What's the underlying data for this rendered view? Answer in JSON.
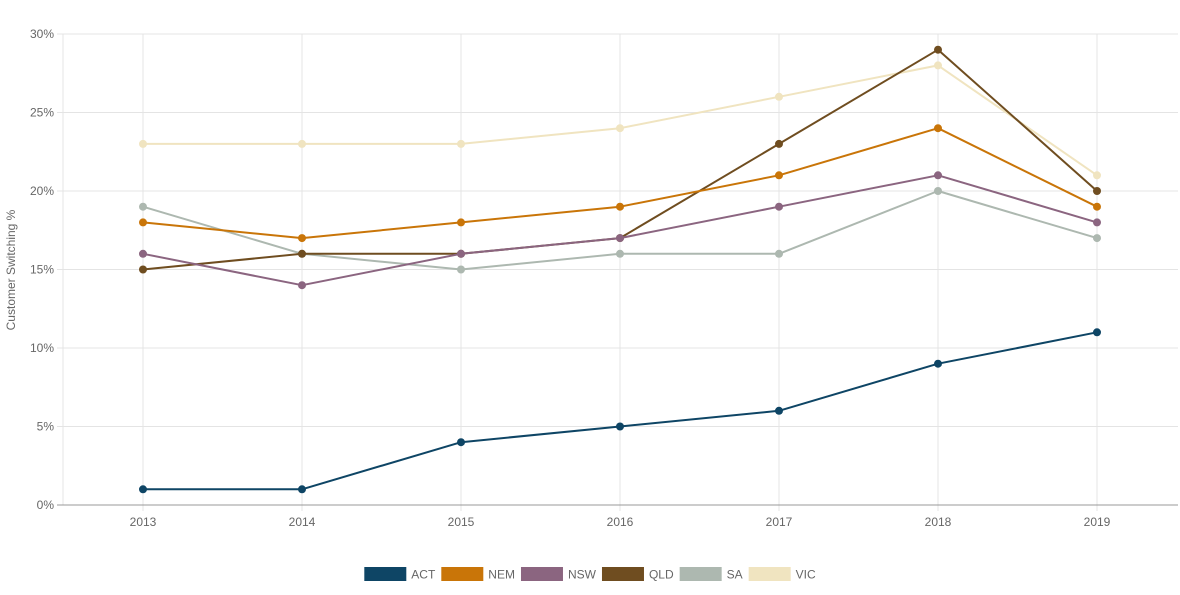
{
  "chart_data": {
    "type": "line",
    "title": "",
    "xlabel": "",
    "ylabel": "Customer Switching %",
    "categories": [
      "2013",
      "2014",
      "2015",
      "2016",
      "2017",
      "2018",
      "2019"
    ],
    "ylim": [
      0,
      30
    ],
    "yticks": [
      0,
      5,
      10,
      15,
      20,
      25,
      30
    ],
    "ytick_labels": [
      "0%",
      "5%",
      "10%",
      "15%",
      "20%",
      "25%",
      "30%"
    ],
    "grid": true,
    "legend_position": "bottom",
    "series": [
      {
        "name": "ACT",
        "color": "#0e4565",
        "values": [
          1,
          1,
          4,
          5,
          6,
          9,
          11
        ]
      },
      {
        "name": "NEM",
        "color": "#c97508",
        "values": [
          18,
          17,
          18,
          19,
          21,
          24,
          19
        ]
      },
      {
        "name": "NSW",
        "color": "#8b6580",
        "values": [
          16,
          14,
          16,
          17,
          19,
          21,
          18
        ]
      },
      {
        "name": "QLD",
        "color": "#6f4d20",
        "values": [
          15,
          16,
          16,
          17,
          23,
          29,
          20
        ]
      },
      {
        "name": "SA",
        "color": "#adb8b0",
        "values": [
          19,
          16,
          15,
          16,
          16,
          20,
          17
        ]
      },
      {
        "name": "VIC",
        "color": "#f0e4c0",
        "values": [
          23,
          23,
          23,
          24,
          26,
          28,
          21
        ]
      }
    ]
  }
}
